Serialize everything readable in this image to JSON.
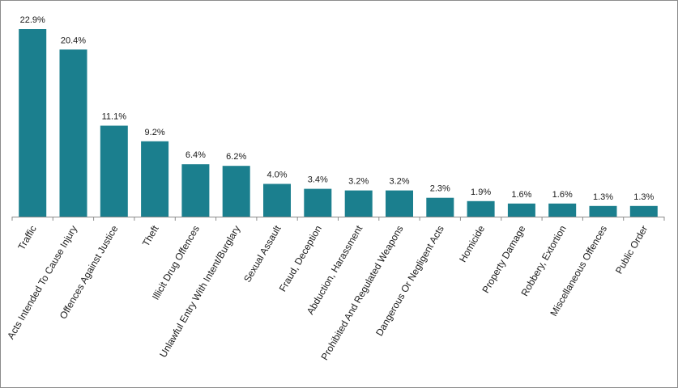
{
  "chart_data": {
    "type": "bar",
    "categories": [
      "Traffic",
      "Acts Intended To Cause Injury",
      "Offences Against Justice",
      "Theft",
      "Illicit Drug Offences",
      "Unlawful Entry With Intent/Burglary",
      "Sexual Assault",
      "Fraud, Deception",
      "Abduction, Harassment",
      "Prohibited And Regulated Weapons",
      "Dangerous Or Negligent Acts",
      "Homicide",
      "Property Damage",
      "Robbery, Extortion",
      "Miscellaneous Offences",
      "Public Order"
    ],
    "values": [
      22.9,
      20.4,
      11.1,
      9.2,
      6.4,
      6.2,
      4.0,
      3.4,
      3.2,
      3.2,
      2.3,
      1.9,
      1.6,
      1.6,
      1.3,
      1.3
    ],
    "value_labels": [
      "22.9%",
      "20.4%",
      "11.1%",
      "9.2%",
      "6.4%",
      "6.2%",
      "4.0%",
      "3.4%",
      "3.2%",
      "3.2%",
      "2.3%",
      "1.9%",
      "1.6%",
      "1.6%",
      "1.3%",
      "1.3%"
    ],
    "title": "",
    "xlabel": "",
    "ylabel": "",
    "ylim": [
      0,
      22.9
    ],
    "grid": false,
    "legend": "none",
    "bar_color": "#1b7f8e",
    "axis_color": "#8c8c8c"
  }
}
